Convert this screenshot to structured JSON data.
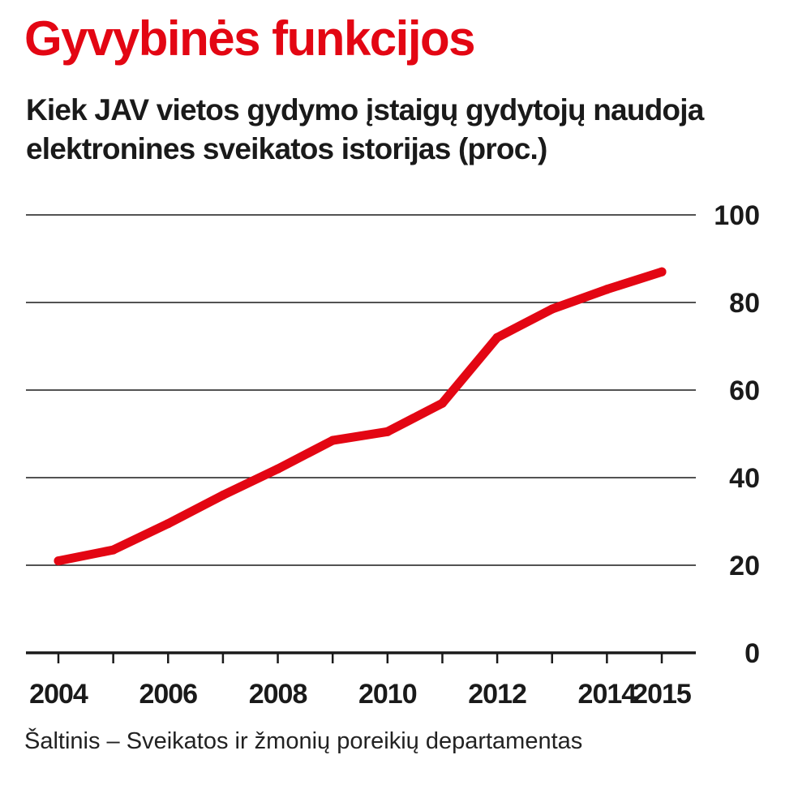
{
  "colors": {
    "title": "#e30613",
    "line": "#e30613",
    "text": "#1a1a1a",
    "grid": "#1a1a1a"
  },
  "title": "Gyvybinės funkcijos",
  "subtitle": "Kiek JAV vietos gydymo įstaigų gydytojų naudoja elektronines sveikatos istorijas (proc.)",
  "source": "Šaltinis – Sveikatos ir žmonių poreikių departamentas",
  "chart_data": {
    "type": "line",
    "title": "Gyvybinės funkcijos",
    "subtitle": "Kiek JAV vietos gydymo įstaigų gydytojų naudoja elektronines sveikatos istorijas (proc.)",
    "x": [
      2004,
      2005,
      2006,
      2007,
      2008,
      2009,
      2010,
      2011,
      2012,
      2013,
      2014,
      2015
    ],
    "series": [
      {
        "values": [
          21,
          23.5,
          29.5,
          36,
          42,
          48.5,
          50.5,
          57,
          72,
          78.5,
          83,
          87
        ]
      }
    ],
    "x_tick_labels": [
      "2004",
      "2006",
      "2008",
      "2010",
      "2012",
      "2014",
      "2015"
    ],
    "x_ticks": [
      2004,
      2005,
      2006,
      2007,
      2008,
      2009,
      2010,
      2011,
      2012,
      2013,
      2014,
      2015
    ],
    "y_ticks": [
      0,
      20,
      40,
      60,
      80,
      100
    ],
    "ylim": [
      0,
      100
    ],
    "xlim": [
      2004,
      2015
    ],
    "y_axis_side": "right",
    "grid": "horizontal"
  }
}
